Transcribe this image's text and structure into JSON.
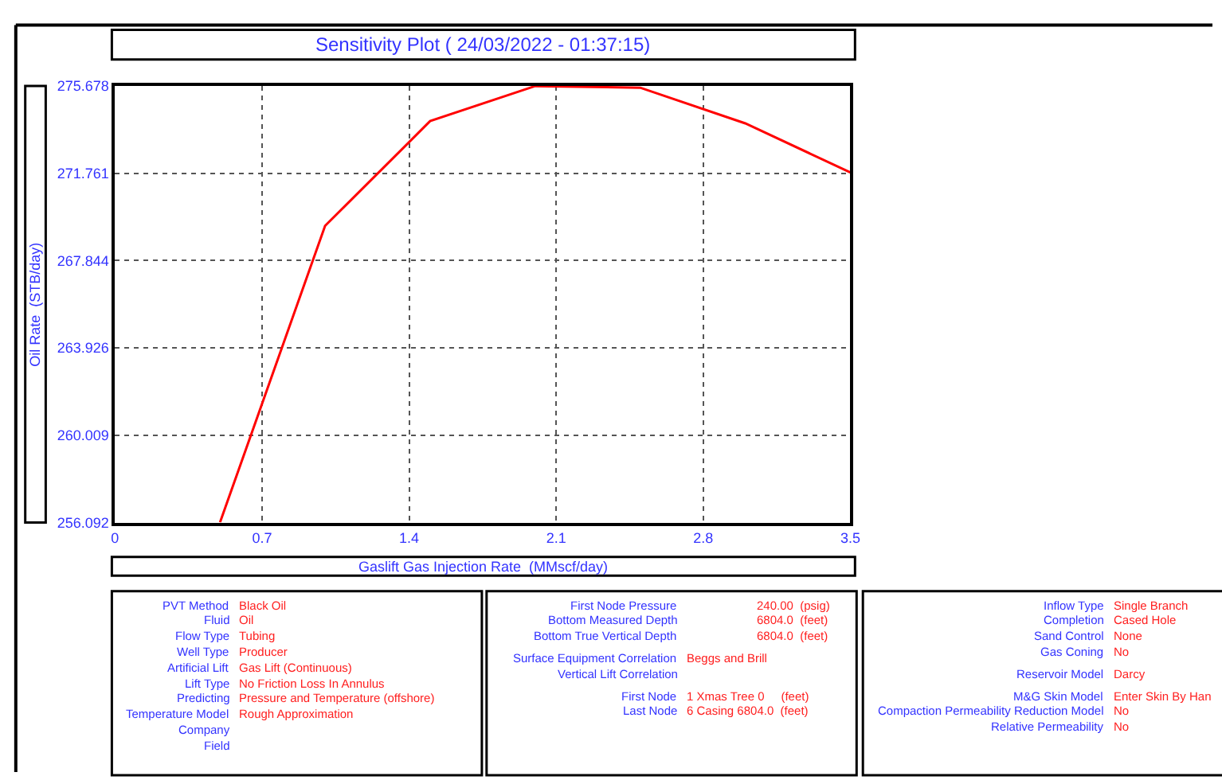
{
  "chart_data": {
    "type": "line",
    "title": "Sensitivity Plot ( 24/03/2022 - 01:37:15)",
    "xlabel": "Gaslift Gas Injection Rate  (MMscf/day)",
    "ylabel": "Oil Rate  (STB/day)",
    "x": [
      0.5,
      1.0,
      1.5,
      2.0,
      2.5,
      3.0,
      3.5
    ],
    "series": [
      {
        "color": "#ff0000",
        "values": [
          256.1,
          269.4,
          274.1,
          275.67,
          275.6,
          274.0,
          271.8
        ]
      }
    ],
    "xlim": [
      0,
      3.5
    ],
    "xticks": [
      0,
      0.7,
      1.4,
      2.1,
      2.8,
      3.5
    ],
    "ylim": [
      256.092,
      275.678
    ],
    "yticks": [
      256.092,
      260.009,
      263.926,
      267.844,
      271.761,
      275.678
    ],
    "grid": true,
    "marker": "none",
    "line_style": "solid",
    "annotations": [
      "PVT Method",
      "Black Oil",
      "Fluid",
      "Oil",
      "Flow Type",
      "Tubing",
      "Well Type",
      "Producer",
      "Artificial Lift",
      "Gas Lift (Continuous)",
      "Lift Type",
      "No Friction Loss In Annulus",
      "Predicting",
      "Pressure and Temperature (offshore)",
      "Temperature Model",
      "Rough Approximation",
      "Company",
      "Field",
      "First Node Pressure",
      "240.00  (psig)",
      "Bottom Measured Depth",
      "6804.0  (feet)",
      "Bottom True Vertical Depth",
      "6804.0  (feet)",
      "Surface Equipment Correlation",
      "Beggs and Brill",
      "Vertical Lift Correlation",
      "First Node",
      "1 Xmas Tree 0     (feet)",
      "Last Node",
      "6 Casing 6804.0  (feet)",
      "Inflow Type",
      "Single Branch",
      "Completion",
      "Cased Hole",
      "Sand Control",
      "None",
      "Gas Coning",
      "No",
      "Reservoir Model",
      "Darcy",
      "M&G Skin Model",
      "Enter Skin By Han",
      "Compaction Permeability Reduction Model",
      "No",
      "Relative Permeability",
      "No"
    ]
  }
}
